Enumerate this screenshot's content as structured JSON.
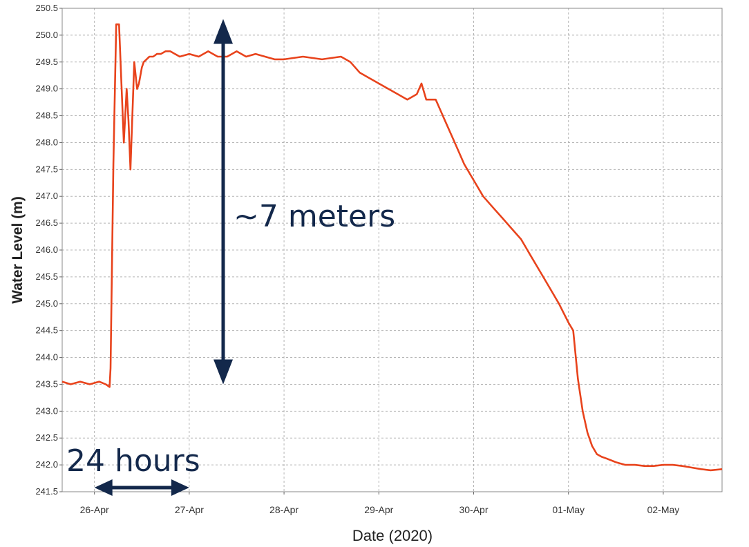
{
  "chart_data": {
    "type": "line",
    "xlabel": "Date (2020)",
    "ylabel": "Water Level (m)",
    "x_ticks": [
      "26-Apr",
      "27-Apr",
      "28-Apr",
      "29-Apr",
      "30-Apr",
      "01-May",
      "02-May"
    ],
    "x_tick_positions_days": [
      0,
      1,
      2,
      3,
      4,
      5,
      6
    ],
    "xlim_days": [
      -0.34,
      6.62
    ],
    "y_ticks": [
      "241.5",
      "242.0",
      "242.5",
      "243.0",
      "243.5",
      "244.0",
      "244.5",
      "245.0",
      "245.5",
      "246.0",
      "246.5",
      "247.0",
      "247.5",
      "248.0",
      "248.5",
      "249.0",
      "249.5",
      "250.0",
      "250.5"
    ],
    "ylim": [
      241.5,
      250.5
    ],
    "grid": true,
    "line_color": "#e8431c",
    "series": [
      {
        "x_days": [
          -0.34,
          -0.25,
          -0.15,
          -0.05,
          0.05,
          0.12,
          0.16,
          0.17,
          0.2,
          0.23,
          0.26,
          0.28,
          0.31,
          0.34,
          0.36,
          0.38,
          0.42,
          0.45,
          0.47,
          0.5,
          0.52,
          0.55,
          0.58,
          0.62,
          0.66,
          0.7,
          0.75,
          0.8,
          0.9,
          1.0,
          1.1,
          1.2,
          1.3,
          1.4,
          1.5,
          1.6,
          1.7,
          1.8,
          1.9,
          2.0,
          2.2,
          2.4,
          2.6,
          2.7,
          2.8,
          2.9,
          3.0,
          3.2,
          3.3,
          3.4,
          3.45,
          3.5,
          3.55,
          3.6,
          3.7,
          3.8,
          3.9,
          4.0,
          4.1,
          4.2,
          4.3,
          4.4,
          4.5,
          4.6,
          4.7,
          4.8,
          4.9,
          5.0,
          5.05,
          5.1,
          5.15,
          5.2,
          5.25,
          5.3,
          5.35,
          5.4,
          5.5,
          5.6,
          5.7,
          5.8,
          5.9,
          6.0,
          6.1,
          6.2,
          6.3,
          6.4,
          6.5,
          6.62
        ],
        "y": [
          243.55,
          243.5,
          243.55,
          243.5,
          243.55,
          243.5,
          243.45,
          243.8,
          247.6,
          250.2,
          250.2,
          249.3,
          248.0,
          249.0,
          248.4,
          247.5,
          249.5,
          249.0,
          249.1,
          249.4,
          249.5,
          249.55,
          249.6,
          249.6,
          249.65,
          249.65,
          249.7,
          249.7,
          249.6,
          249.65,
          249.6,
          249.7,
          249.6,
          249.6,
          249.7,
          249.6,
          249.65,
          249.6,
          249.55,
          249.55,
          249.6,
          249.55,
          249.6,
          249.5,
          249.3,
          249.2,
          249.1,
          248.9,
          248.8,
          248.9,
          249.1,
          248.8,
          248.8,
          248.8,
          248.4,
          248.0,
          247.6,
          247.3,
          247.0,
          246.8,
          246.6,
          246.4,
          246.2,
          245.9,
          245.6,
          245.3,
          245.0,
          244.65,
          244.5,
          243.6,
          243.0,
          242.6,
          242.35,
          242.2,
          242.15,
          242.12,
          242.05,
          242.0,
          242.0,
          241.98,
          241.98,
          242.0,
          242.0,
          241.98,
          241.95,
          241.92,
          241.9,
          241.92
        ]
      }
    ],
    "annotations": {
      "vertical_arrow_label": "~7 meters",
      "vertical_arrow_range": [
        243.5,
        250.3
      ],
      "horizontal_arrow_label": "24 hours",
      "horizontal_arrow_days": [
        0.0,
        1.0
      ],
      "arrow_color": "#13284b"
    }
  }
}
